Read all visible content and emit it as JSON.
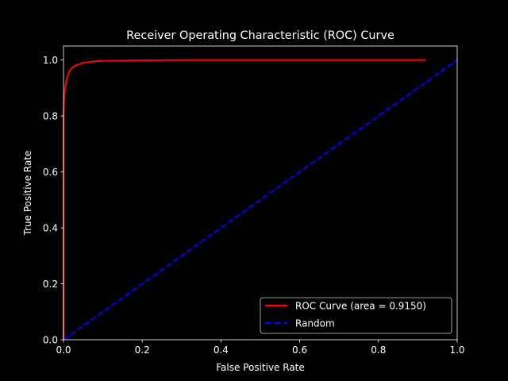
{
  "chart_data": {
    "type": "line",
    "title": "Receiver Operating Characteristic (ROC) Curve",
    "xlabel": "False Positive Rate",
    "ylabel": "True Positive Rate",
    "xlim": [
      0.0,
      1.0
    ],
    "ylim": [
      0.0,
      1.05
    ],
    "xticks": [
      0.0,
      0.2,
      0.4,
      0.6,
      0.8,
      1.0
    ],
    "xtick_labels": [
      "0.0",
      "0.2",
      "0.4",
      "0.6",
      "0.8",
      "1.0"
    ],
    "yticks": [
      0.0,
      0.2,
      0.4,
      0.6,
      0.8,
      1.0
    ],
    "ytick_labels": [
      "0.0",
      "0.2",
      "0.4",
      "0.6",
      "0.8",
      "1.0"
    ],
    "grid": false,
    "legend_placement": "lower-right",
    "background": "#000000",
    "foreground": "#ffffff",
    "series": [
      {
        "name": "ROC Curve (area = 0.9150)",
        "color": "#ff0000",
        "style": "solid",
        "x": [
          0.0,
          0.0,
          0.002,
          0.005,
          0.01,
          0.015,
          0.02,
          0.03,
          0.04,
          0.05,
          0.06,
          0.08,
          0.1,
          0.15,
          0.2,
          0.3,
          0.5,
          0.7,
          0.92
        ],
        "y": [
          0.0,
          0.8,
          0.87,
          0.91,
          0.94,
          0.96,
          0.97,
          0.98,
          0.985,
          0.99,
          0.992,
          0.995,
          0.997,
          0.998,
          0.999,
          1.0,
          1.0,
          1.0,
          1.0
        ]
      },
      {
        "name": "Random",
        "color": "#0000ff",
        "style": "dashed",
        "x": [
          0.0,
          1.0
        ],
        "y": [
          0.0,
          1.0
        ]
      }
    ]
  }
}
